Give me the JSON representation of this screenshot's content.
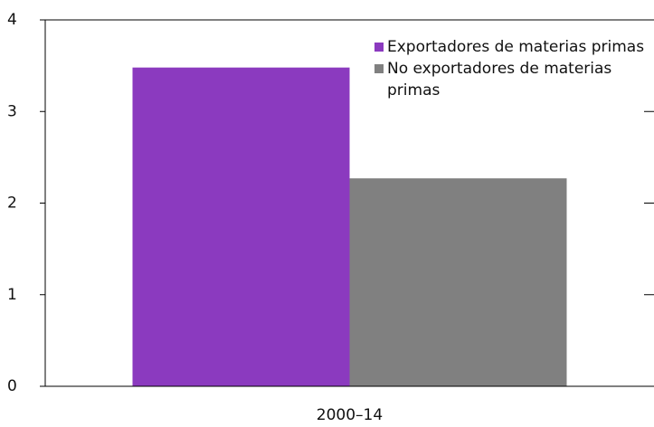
{
  "chart_data": {
    "type": "bar",
    "categories": [
      "2000–14"
    ],
    "series": [
      {
        "name": "Exportadores de materias primas",
        "color": "#8b3abf",
        "values": [
          3.48
        ]
      },
      {
        "name": "No exportadores de materias primas",
        "color": "#808080",
        "values": [
          2.27
        ]
      }
    ],
    "ylim": [
      0,
      4
    ],
    "yticks": [
      0,
      1,
      2,
      3,
      4
    ],
    "grid": false,
    "legend": "top-right"
  }
}
